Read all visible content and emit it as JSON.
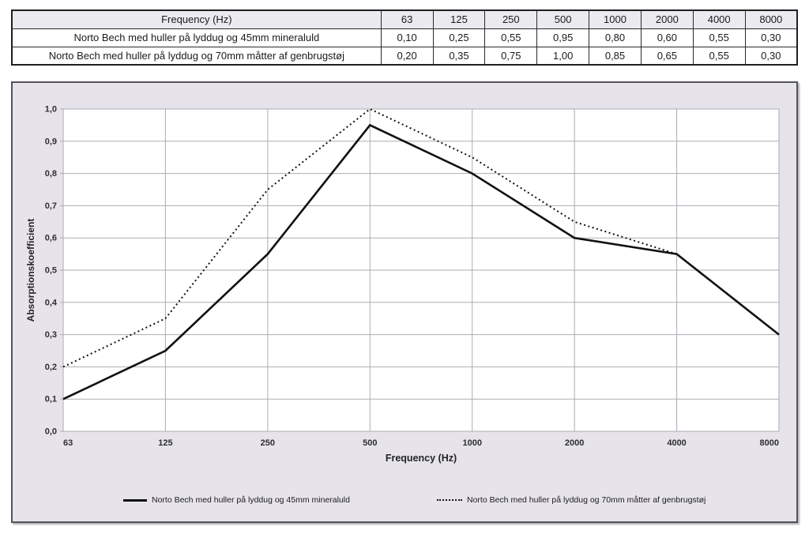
{
  "table": {
    "header": [
      "Frequency (Hz)",
      "63",
      "125",
      "250",
      "500",
      "1000",
      "2000",
      "4000",
      "8000"
    ],
    "rows": [
      {
        "label": "Norto Bech med huller på lyddug og 45mm mineraluld",
        "values": [
          "0,10",
          "0,25",
          "0,55",
          "0,95",
          "0,80",
          "0,60",
          "0,55",
          "0,30"
        ]
      },
      {
        "label": "Norto Bech med huller på lyddug og 70mm måtter af genbrugstøj",
        "values": [
          "0,20",
          "0,35",
          "0,75",
          "1,00",
          "0,85",
          "0,65",
          "0,55",
          "0,30"
        ]
      }
    ]
  },
  "chart_data": {
    "type": "line",
    "categories": [
      "63",
      "125",
      "250",
      "500",
      "1000",
      "2000",
      "4000",
      "8000"
    ],
    "series": [
      {
        "name": "Norto Bech med huller på lyddug og 45mm mineraluld",
        "line_style": "solid",
        "color": "#111111",
        "values": [
          0.1,
          0.25,
          0.55,
          0.95,
          0.8,
          0.6,
          0.55,
          0.3
        ]
      },
      {
        "name": "Norto Bech med huller på lyddug og 70mm måtter af genbrugstøj",
        "line_style": "dotted",
        "color": "#111111",
        "values": [
          0.2,
          0.35,
          0.75,
          1.0,
          0.85,
          0.65,
          0.55,
          0.3
        ]
      }
    ],
    "xlabel": "Frequency (Hz)",
    "ylabel": "Absorptionskoefficient",
    "ylim": [
      0.0,
      1.0
    ],
    "ytick_step": 0.1,
    "ytick_labels": [
      "0,0",
      "0,1",
      "0,2",
      "0,3",
      "0,4",
      "0,5",
      "0,6",
      "0,7",
      "0,8",
      "0,9",
      "1,0"
    ],
    "grid": true,
    "legend_position": "bottom",
    "colors": {
      "chart_bg": "#e6e3eb",
      "plot_bg": "#ffffff",
      "grid": "#aeabb4",
      "tick_text": "#2e2e2e"
    }
  }
}
